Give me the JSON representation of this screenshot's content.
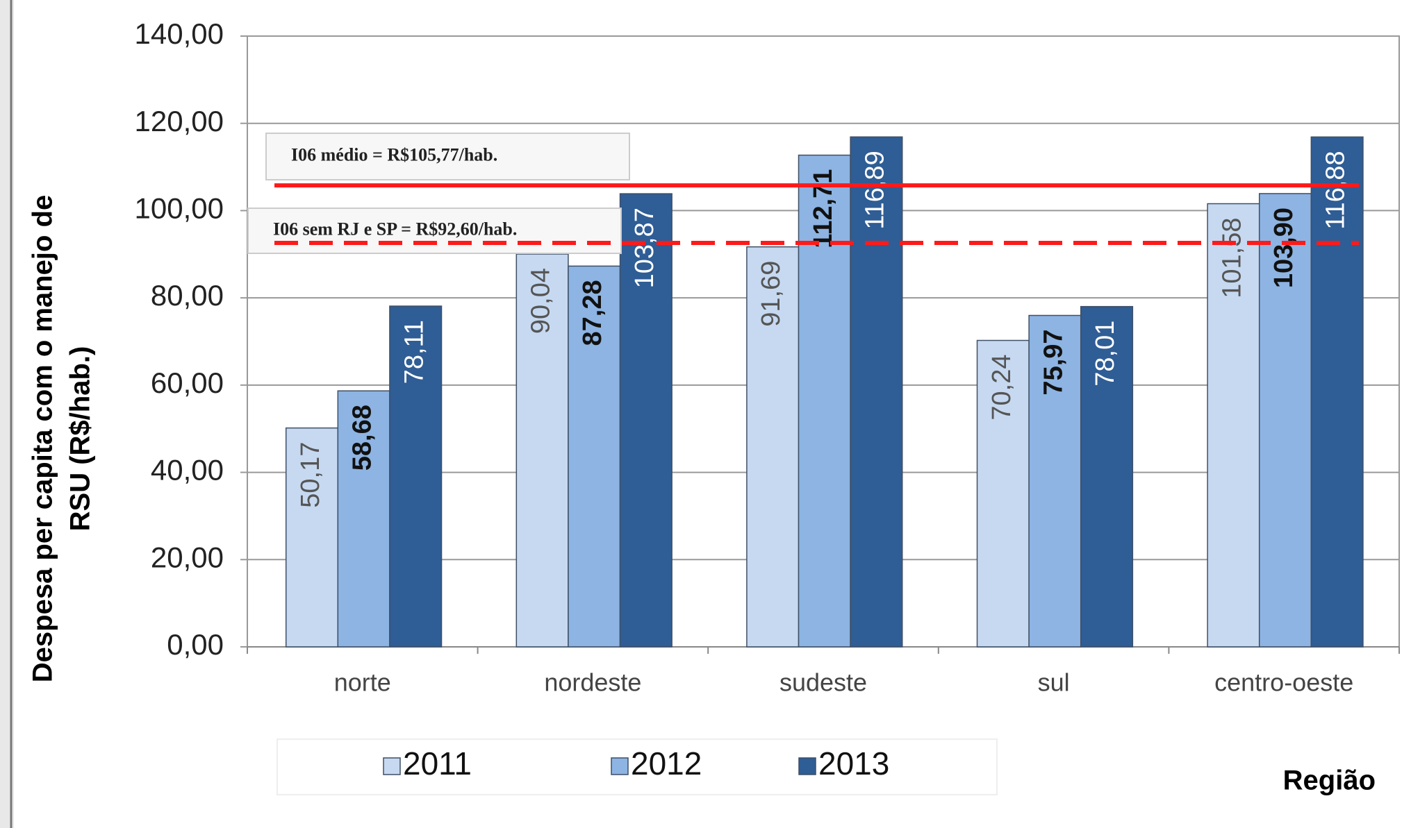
{
  "chart_data": {
    "type": "bar",
    "y_label": [
      "Despesa per capita com o manejo de",
      "RSU (R$/hab.)"
    ],
    "x_label": "Região",
    "categories": [
      "norte",
      "nordeste",
      "sudeste",
      "sul",
      "centro-oeste"
    ],
    "series": [
      {
        "name": "2011",
        "color": "#c6d9f1",
        "values": [
          50.17,
          90.04,
          91.69,
          70.24,
          101.58
        ],
        "value_labels": [
          "50,17",
          "90,04",
          "91,69",
          "70,24",
          "101,58"
        ]
      },
      {
        "name": "2012",
        "color": "#8db4e2",
        "values": [
          58.68,
          87.28,
          112.71,
          75.97,
          103.9
        ],
        "value_labels": [
          "58,68",
          "87,28",
          "112,71",
          "75,97",
          "103,90"
        ]
      },
      {
        "name": "2013",
        "color": "#2f5d95",
        "values": [
          78.11,
          103.87,
          116.89,
          78.01,
          116.88
        ],
        "value_labels": [
          "78,11",
          "103,87",
          "116,89",
          "78,01",
          "116,88"
        ]
      }
    ],
    "ylim": [
      0,
      140
    ],
    "yticks": [
      {
        "value": 0,
        "label": "0,00"
      },
      {
        "value": 20,
        "label": "20,00"
      },
      {
        "value": 40,
        "label": "40,00"
      },
      {
        "value": 60,
        "label": "60,00"
      },
      {
        "value": 80,
        "label": "80,00"
      },
      {
        "value": 100,
        "label": "100,00"
      },
      {
        "value": 120,
        "label": "120,00"
      },
      {
        "value": 140,
        "label": "140,00"
      }
    ],
    "reference_lines": [
      {
        "label": "I06 médio = R$105,77/hab.",
        "value": 105.77,
        "color": "#ff1a1a",
        "style": "solid"
      },
      {
        "label": "I06 sem RJ e SP = R$92,60/hab.",
        "value": 92.6,
        "color": "#ff1a1a",
        "style": "dashed"
      }
    ],
    "legend": "bottom"
  }
}
